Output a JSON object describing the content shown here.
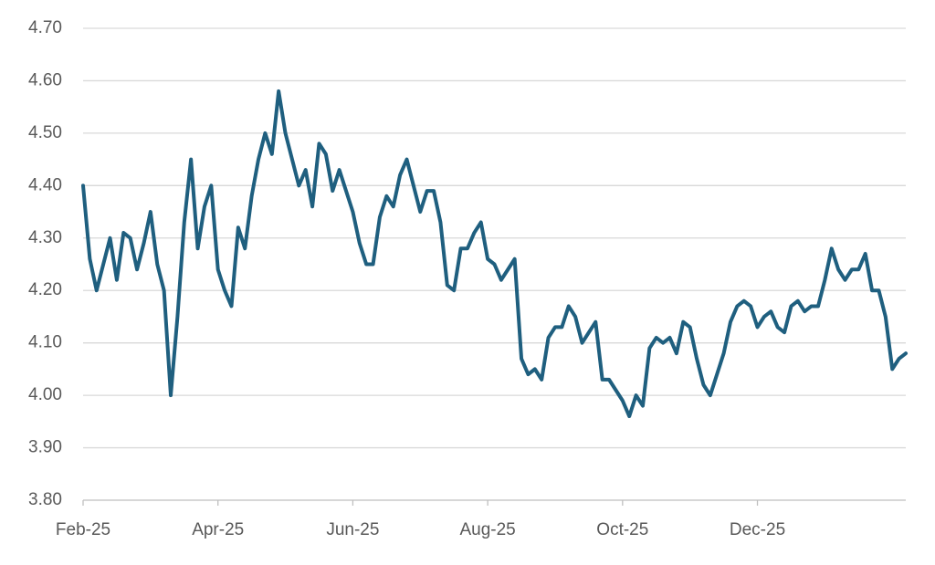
{
  "chart_data": {
    "type": "line",
    "categories": [
      "Feb-25",
      null,
      null,
      null,
      null,
      null,
      null,
      null,
      null,
      null,
      null,
      null,
      null,
      null,
      null,
      null,
      null,
      null,
      null,
      null,
      "Apr-25",
      null,
      null,
      null,
      null,
      null,
      null,
      null,
      null,
      null,
      null,
      null,
      null,
      null,
      null,
      null,
      null,
      null,
      null,
      null,
      "Jun-25",
      null,
      null,
      null,
      null,
      null,
      null,
      null,
      null,
      null,
      null,
      null,
      null,
      null,
      null,
      null,
      null,
      null,
      null,
      null,
      "Aug-25",
      null,
      null,
      null,
      null,
      null,
      null,
      null,
      null,
      null,
      null,
      null,
      null,
      null,
      null,
      null,
      null,
      null,
      null,
      null,
      "Oct-25",
      null,
      null,
      null,
      null,
      null,
      null,
      null,
      null,
      null,
      null,
      null,
      null,
      null,
      null,
      null,
      null,
      null,
      null,
      null,
      "Dec-25",
      null,
      null,
      null,
      null,
      null,
      null,
      null,
      null,
      null,
      null,
      null,
      null,
      null,
      null,
      null,
      null,
      null,
      null,
      null,
      null,
      null,
      null
    ],
    "values": [
      4.4,
      4.26,
      4.2,
      4.25,
      4.3,
      4.22,
      4.31,
      4.3,
      4.24,
      4.29,
      4.35,
      4.25,
      4.2,
      4.0,
      4.15,
      4.33,
      4.45,
      4.28,
      4.36,
      4.4,
      4.24,
      4.2,
      4.17,
      4.32,
      4.28,
      4.38,
      4.45,
      4.5,
      4.46,
      4.58,
      4.5,
      4.45,
      4.4,
      4.43,
      4.36,
      4.48,
      4.46,
      4.39,
      4.43,
      4.39,
      4.35,
      4.29,
      4.25,
      4.25,
      4.34,
      4.38,
      4.36,
      4.42,
      4.45,
      4.4,
      4.35,
      4.39,
      4.39,
      4.33,
      4.21,
      4.2,
      4.28,
      4.28,
      4.31,
      4.33,
      4.26,
      4.25,
      4.22,
      4.24,
      4.26,
      4.07,
      4.04,
      4.05,
      4.03,
      4.11,
      4.13,
      4.13,
      4.17,
      4.15,
      4.1,
      4.12,
      4.14,
      4.03,
      4.03,
      4.01,
      3.99,
      3.96,
      4.0,
      3.98,
      4.09,
      4.11,
      4.1,
      4.11,
      4.08,
      4.14,
      4.13,
      4.07,
      4.02,
      4.0,
      4.04,
      4.08,
      4.14,
      4.17,
      4.18,
      4.17,
      4.13,
      4.15,
      4.16,
      4.13,
      4.12,
      4.17,
      4.18,
      4.16,
      4.17,
      4.17,
      4.22,
      4.28,
      4.24,
      4.22,
      4.24,
      4.24,
      4.27,
      4.2,
      4.2,
      4.15,
      4.05,
      4.07,
      4.08
    ],
    "color": "#1f5f7f",
    "ylim": [
      3.8,
      4.7
    ],
    "yticks": [
      {
        "value": 3.8,
        "label": "3.80"
      },
      {
        "value": 3.9,
        "label": "3.90"
      },
      {
        "value": 4.0,
        "label": "4.00"
      },
      {
        "value": 4.1,
        "label": "4.10"
      },
      {
        "value": 4.2,
        "label": "4.20"
      },
      {
        "value": 4.3,
        "label": "4.30"
      },
      {
        "value": 4.4,
        "label": "4.40"
      },
      {
        "value": 4.5,
        "label": "4.50"
      },
      {
        "value": 4.6,
        "label": "4.60"
      },
      {
        "value": 4.7,
        "label": "4.70"
      }
    ],
    "grid": true
  }
}
